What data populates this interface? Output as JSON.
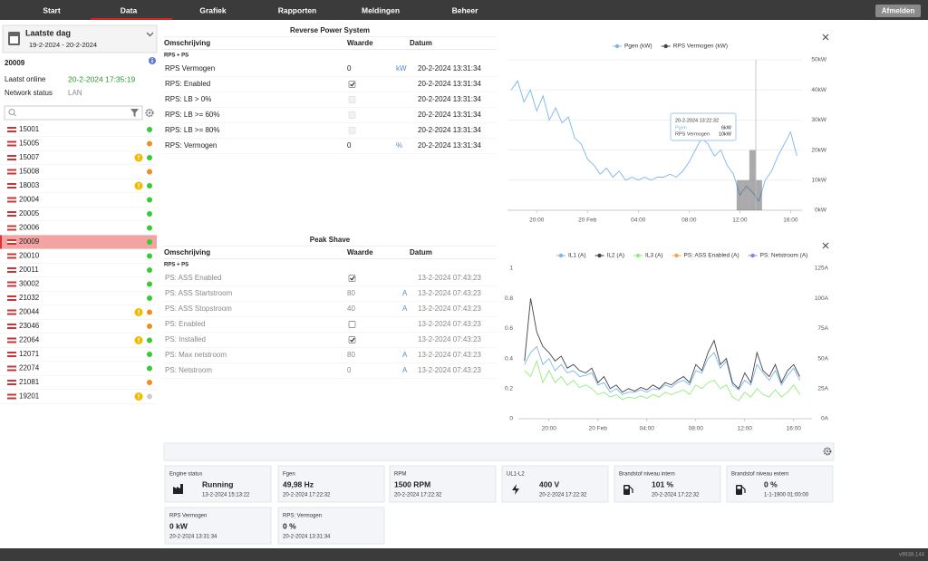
{
  "nav": {
    "tabs": [
      "Start",
      "Data",
      "Grafiek",
      "Rapporten",
      "Meldingen",
      "Beheer"
    ],
    "logout": "Afmelden"
  },
  "sidebar": {
    "period": "Laatste dag",
    "range": "19-2-2024 - 20-2-2024",
    "unit": "20009",
    "fields": [
      {
        "label": "Laatst online",
        "value": "20-2-2024 17:35:19"
      },
      {
        "label": "Network status",
        "value": "LAN"
      }
    ],
    "units": [
      {
        "name": "15001",
        "status": "#33cc33"
      },
      {
        "name": "15005",
        "status": "#f28c1c"
      },
      {
        "name": "15007",
        "status": "#33cc33",
        "warning": true
      },
      {
        "name": "15008",
        "status": "#f28c1c"
      },
      {
        "name": "18003",
        "status": "#33cc33",
        "warning": true
      },
      {
        "name": "20004",
        "status": "#33cc33"
      },
      {
        "name": "20005",
        "status": "#33cc33"
      },
      {
        "name": "20006",
        "status": "#33cc33"
      },
      {
        "name": "20009",
        "status": "#33cc33",
        "selected": true
      },
      {
        "name": "20010",
        "status": "#33cc33"
      },
      {
        "name": "20011",
        "status": "#33cc33"
      },
      {
        "name": "30002",
        "status": "#33cc33"
      },
      {
        "name": "21032",
        "status": "#33cc33"
      },
      {
        "name": "20044",
        "status": "#f28c1c",
        "warning": true
      },
      {
        "name": "23046",
        "status": "#f28c1c"
      },
      {
        "name": "22064",
        "status": "#33cc33",
        "warning": true
      },
      {
        "name": "12071",
        "status": "#33cc33"
      },
      {
        "name": "22074",
        "status": "#33cc33"
      },
      {
        "name": "21081",
        "status": "#f28c1c"
      },
      {
        "name": "19201",
        "status": "#cccccc",
        "warning": true
      }
    ]
  },
  "rps_table": {
    "title": "Reverse Power System",
    "columns": [
      "Omschrijving",
      "Waarde",
      "Datum"
    ],
    "group": "RPS + PS",
    "muted": false,
    "rows": [
      {
        "label": "RPS Vermogen",
        "value": "0",
        "unit": "kW",
        "date": "20-2-2024 13:31:34"
      },
      {
        "label": "RPS: Enabled",
        "checked": true,
        "date": "20-2-2024 13:31:34"
      },
      {
        "label": "RPS: LB > 0%",
        "checked": false,
        "date": "20-2-2024 13:31:34"
      },
      {
        "label": "RPS: LB >= 60%",
        "checked": false,
        "date": "20-2-2024 13:31:34"
      },
      {
        "label": "RPS: LB >= 80%",
        "checked": false,
        "date": "20-2-2024 13:31:34"
      },
      {
        "label": "RPS: Vermogen",
        "value": "0",
        "unit": "%",
        "date": "20-2-2024 13:31:34"
      }
    ]
  },
  "peak_shave": {
    "title": "Peak Shave",
    "columns": [
      "Omschrijving",
      "Waarde",
      "Datum"
    ],
    "group": "RPS + PS",
    "muted": true,
    "rows": [
      {
        "label": "PS: ASS Enabled",
        "checked": true,
        "date": "13-2-2024 07:43:23"
      },
      {
        "label": "PS: ASS Startstroom",
        "value": "80",
        "unit": "A",
        "date": "13-2-2024 07:43:23"
      },
      {
        "label": "PS: ASS Stopstroom",
        "value": "40",
        "unit": "A",
        "date": "13-2-2024 07:43:23"
      },
      {
        "label": "PS: Enabled",
        "checked": false,
        "date": "13-2-2024 07:43:23"
      },
      {
        "label": "PS: Installed",
        "checked": true,
        "date": "13-2-2024 07:43:23"
      },
      {
        "label": "PS: Max netstroom",
        "value": "80",
        "unit": "A",
        "date": "13-2-2024 07:43:23"
      },
      {
        "label": "PS: Netstroom",
        "value": "0",
        "unit": "A",
        "date": "13-2-2024 07:43:23"
      }
    ]
  },
  "chart_data": [
    {
      "type": "line",
      "grid": true,
      "x": [
        18,
        18.5,
        19,
        19.5,
        20,
        20.5,
        21,
        21.5,
        22,
        22.5,
        23,
        23.5,
        24,
        24.5,
        25,
        25.5,
        26,
        26.5,
        27,
        27.5,
        28,
        28.5,
        29,
        29.5,
        30,
        30.5,
        31,
        31.5,
        32,
        32.5,
        33,
        33.5,
        34,
        34.5,
        35,
        35.5,
        36,
        36.5,
        37,
        37.5,
        38,
        38.5,
        39,
        39.5,
        40,
        40.5
      ],
      "xlim": [
        17.7,
        40.9
      ],
      "xticks": [
        {
          "value": 20,
          "label": "20:00"
        },
        {
          "value": 24,
          "label": "20 Feb"
        },
        {
          "value": 28,
          "label": "04:00"
        },
        {
          "value": 32,
          "label": "08:00"
        },
        {
          "value": 36,
          "label": "12:00"
        },
        {
          "value": 40,
          "label": "16:00"
        }
      ],
      "ylim": [
        0,
        50
      ],
      "yticks": [
        {
          "value": 0,
          "label": "0kW"
        },
        {
          "value": 10,
          "label": "10kW"
        },
        {
          "value": 20,
          "label": "20kW"
        },
        {
          "value": 30,
          "label": "30kW"
        },
        {
          "value": 40,
          "label": "40kW"
        },
        {
          "value": 50,
          "label": "50kW"
        }
      ],
      "series": [
        {
          "name": "Pgen (kW)",
          "color": "#7cb5ec",
          "values": [
            40,
            43,
            36,
            40,
            33,
            38,
            30,
            34,
            29,
            31,
            24,
            22,
            17,
            15,
            12,
            14,
            11,
            13,
            10,
            11,
            10,
            11,
            10,
            11,
            11,
            12,
            11,
            13,
            16,
            20,
            24,
            22,
            18,
            20,
            15,
            12,
            5,
            8,
            6,
            3,
            10,
            13,
            18,
            22,
            26,
            18
          ]
        },
        {
          "name": "RPS Vermogen (kW)",
          "color": "#434348",
          "type": "bar",
          "values": [
            0,
            0,
            0,
            0,
            0,
            0,
            0,
            0,
            0,
            0,
            0,
            0,
            0,
            0,
            0,
            0,
            0,
            0,
            0,
            0,
            0,
            0,
            0,
            0,
            0,
            0,
            0,
            0,
            0,
            0,
            0,
            0,
            0,
            0,
            0,
            0,
            10,
            10,
            20,
            10,
            0,
            0,
            0,
            0,
            0,
            0
          ]
        }
      ],
      "tooltip": {
        "title": "20-2-2024 13:22:32",
        "rows": [
          {
            "name": "Pgen",
            "value": "6kW"
          },
          {
            "name": "RPS Vermogen",
            "value": "10kW"
          }
        ]
      }
    },
    {
      "type": "line",
      "grid": false,
      "x": [
        18,
        18.5,
        19,
        19.5,
        20,
        20.5,
        21,
        21.5,
        22,
        22.5,
        23,
        23.5,
        24,
        24.5,
        25,
        25.5,
        26,
        26.5,
        27,
        27.5,
        28,
        28.5,
        29,
        29.5,
        30,
        30.5,
        31,
        31.5,
        32,
        32.5,
        33,
        33.5,
        34,
        34.5,
        35,
        35.5,
        36,
        36.5,
        37,
        37.5,
        38,
        38.5,
        39,
        39.5,
        40,
        40.5
      ],
      "xlim": [
        17.5,
        41.5
      ],
      "xticks": [
        {
          "value": 20,
          "label": "20:00"
        },
        {
          "value": 24,
          "label": "20 Feb"
        },
        {
          "value": 28,
          "label": "04:00"
        },
        {
          "value": 32,
          "label": "08:00"
        },
        {
          "value": 36,
          "label": "12:00"
        },
        {
          "value": 40,
          "label": "16:00"
        }
      ],
      "ylim": [
        0,
        1
      ],
      "yticks": [
        0,
        0.2,
        0.4,
        0.6,
        0.8,
        1
      ],
      "y2lim": [
        0,
        125
      ],
      "y2ticks": [
        {
          "value": 0,
          "label": "0A"
        },
        {
          "value": 25,
          "label": "25A"
        },
        {
          "value": 50,
          "label": "50A"
        },
        {
          "value": 75,
          "label": "75A"
        },
        {
          "value": 100,
          "label": "100A"
        },
        {
          "value": 125,
          "label": "125A"
        }
      ],
      "series": [
        {
          "name": "IL1 (A)",
          "color": "#7cb5ec",
          "axis": "y2",
          "values": [
            45,
            55,
            60,
            45,
            50,
            40,
            45,
            38,
            40,
            35,
            36,
            38,
            28,
            30,
            22,
            25,
            20,
            22,
            22,
            24,
            22,
            25,
            24,
            28,
            26,
            30,
            32,
            28,
            40,
            38,
            50,
            55,
            42,
            48,
            28,
            24,
            32,
            28,
            45,
            38,
            32,
            40,
            28,
            36,
            42,
            32
          ]
        },
        {
          "name": "IL2 (A)",
          "color": "#434348",
          "axis": "y2",
          "values": [
            48,
            100,
            72,
            60,
            55,
            48,
            52,
            42,
            45,
            40,
            38,
            42,
            30,
            35,
            25,
            28,
            22,
            25,
            23,
            26,
            24,
            28,
            25,
            30,
            28,
            32,
            35,
            30,
            45,
            40,
            55,
            65,
            45,
            50,
            30,
            25,
            38,
            30,
            55,
            40,
            35,
            45,
            30,
            40,
            45,
            35
          ]
        },
        {
          "name": "IL3 (A)",
          "color": "#90ed7d",
          "axis": "y2",
          "values": [
            40,
            35,
            48,
            30,
            40,
            30,
            35,
            28,
            32,
            26,
            28,
            25,
            20,
            22,
            18,
            20,
            16,
            18,
            17,
            19,
            17,
            20,
            18,
            22,
            20,
            22,
            24,
            20,
            28,
            25,
            30,
            32,
            25,
            28,
            18,
            15,
            22,
            18,
            25,
            20,
            18,
            24,
            18,
            22,
            28,
            20
          ]
        },
        {
          "name": "PS: ASS Enabled (A)",
          "color": "#f7a35c",
          "axis": "y",
          "values": [
            null,
            null,
            null,
            null,
            null,
            null,
            null,
            null,
            null,
            null,
            null,
            null,
            null,
            null,
            null,
            null,
            null,
            null,
            null,
            null,
            null,
            null,
            null,
            null,
            null,
            null,
            null,
            null,
            null,
            null,
            null,
            null,
            null,
            null,
            null,
            null,
            null,
            null,
            null,
            null,
            null,
            null,
            null,
            null,
            null,
            null
          ]
        },
        {
          "name": "PS: Netstroom (A)",
          "color": "#8085e9",
          "axis": "y2",
          "values": [
            null,
            null,
            null,
            null,
            null,
            null,
            null,
            null,
            null,
            null,
            null,
            null,
            null,
            null,
            null,
            null,
            null,
            null,
            null,
            null,
            null,
            null,
            null,
            null,
            null,
            null,
            null,
            null,
            null,
            null,
            null,
            null,
            null,
            null,
            null,
            null,
            null,
            null,
            null,
            null,
            null,
            null,
            null,
            null,
            null,
            null
          ]
        }
      ]
    }
  ],
  "tiles": [
    {
      "label": "Engine status",
      "value": "Running",
      "date": "13-2-2024 15:13:22",
      "icon": "factory"
    },
    {
      "label": "Fgen",
      "value": "49,98 Hz",
      "date": "20-2-2024 17:22:32"
    },
    {
      "label": "RPM",
      "value": "1500 RPM",
      "date": "20-2-2024 17:22:32"
    },
    {
      "label": "UL1-L2",
      "value": "400 V",
      "date": "20-2-2024 17:22:32",
      "icon": "bolt"
    },
    {
      "label": "Brandstof niveau intern",
      "value": "101 %",
      "date": "20-2-2024 17:22:32",
      "icon": "fuel"
    },
    {
      "label": "Brandstof niveau extern",
      "value": "0 %",
      "date": "1-1-1900 01:00:00",
      "icon": "fuel"
    },
    {
      "label": "RPS Vermogen",
      "value": "0 kW",
      "date": "20-2-2024 13:31:34"
    },
    {
      "label": "RPS: Vermogen",
      "value": "0 %",
      "date": "20-2-2024 13:31:34"
    }
  ],
  "footer": {
    "version": "v9938.144"
  }
}
